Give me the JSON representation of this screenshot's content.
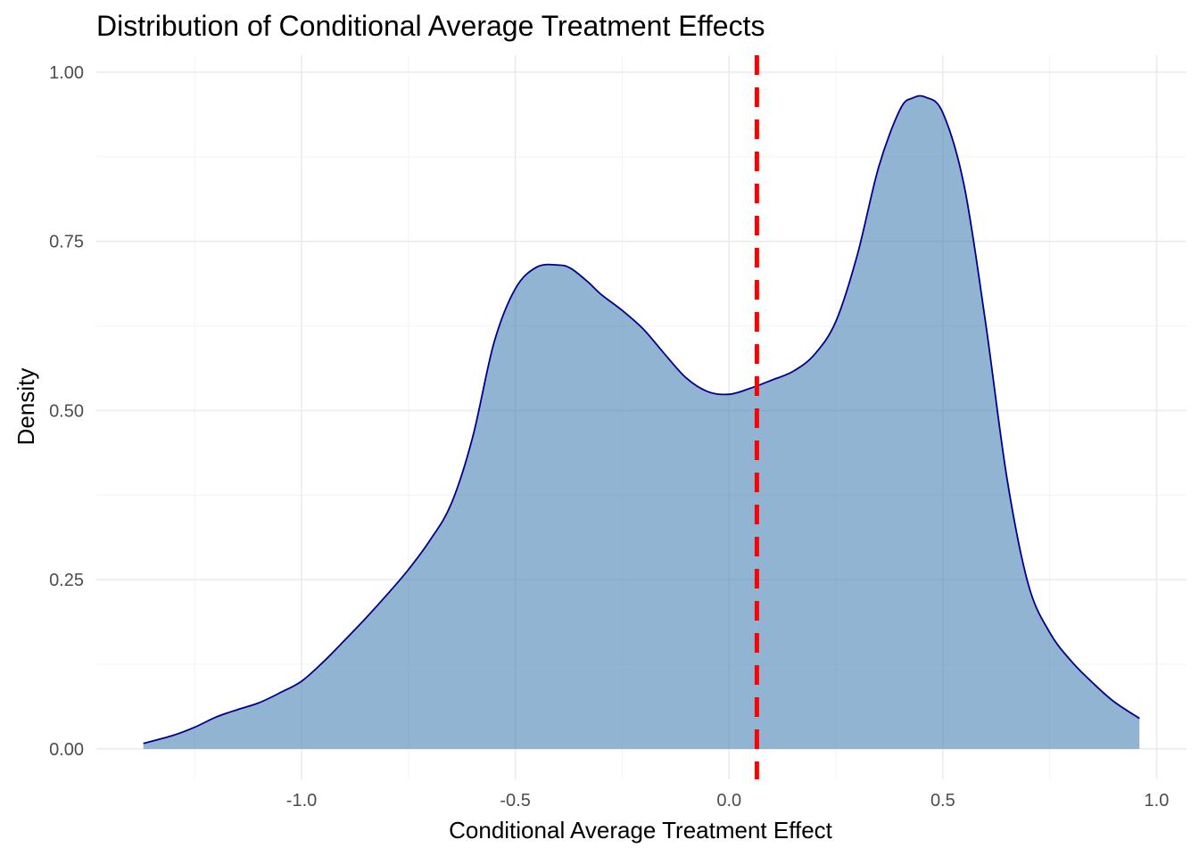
{
  "chart_data": {
    "type": "area",
    "title": "Distribution of Conditional Average Treatment Effects",
    "xlabel": "Conditional Average Treatment Effect",
    "ylabel": "Density",
    "xlim": [
      -1.48,
      1.07
    ],
    "ylim": [
      -0.045,
      1.025
    ],
    "x_ticks": [
      -1.0,
      -0.5,
      0.0,
      0.5,
      1.0
    ],
    "x_tick_labels": [
      "-1.0",
      "-0.5",
      "0.0",
      "0.5",
      "1.0"
    ],
    "x_minor_ticks": [
      -1.25,
      -0.75,
      -0.25,
      0.25,
      0.75
    ],
    "y_ticks": [
      0.0,
      0.25,
      0.5,
      0.75,
      1.0
    ],
    "y_tick_labels": [
      "0.00",
      "0.25",
      "0.50",
      "0.75",
      "1.00"
    ],
    "y_minor_ticks": [
      0.125,
      0.375,
      0.625,
      0.875
    ],
    "grid": true,
    "legend": "none",
    "series": [
      {
        "fill_color": "#4682b4",
        "fill_opacity": 0.6,
        "line_color": "#00008b",
        "x": [
          -1.37,
          -1.3,
          -1.25,
          -1.2,
          -1.15,
          -1.1,
          -1.05,
          -1.0,
          -0.95,
          -0.9,
          -0.85,
          -0.8,
          -0.75,
          -0.7,
          -0.65,
          -0.6,
          -0.55,
          -0.5,
          -0.45,
          -0.4,
          -0.37,
          -0.33,
          -0.3,
          -0.25,
          -0.2,
          -0.15,
          -0.1,
          -0.05,
          0.0,
          0.05,
          0.1,
          0.15,
          0.2,
          0.25,
          0.3,
          0.35,
          0.4,
          0.43,
          0.46,
          0.5,
          0.55,
          0.6,
          0.65,
          0.7,
          0.75,
          0.8,
          0.85,
          0.9,
          0.96
        ],
        "y": [
          0.008,
          0.02,
          0.032,
          0.047,
          0.058,
          0.068,
          0.083,
          0.1,
          0.128,
          0.16,
          0.193,
          0.228,
          0.265,
          0.308,
          0.362,
          0.46,
          0.6,
          0.68,
          0.712,
          0.715,
          0.71,
          0.69,
          0.672,
          0.648,
          0.62,
          0.583,
          0.548,
          0.528,
          0.524,
          0.533,
          0.545,
          0.558,
          0.583,
          0.632,
          0.73,
          0.86,
          0.945,
          0.962,
          0.963,
          0.94,
          0.832,
          0.63,
          0.4,
          0.243,
          0.172,
          0.13,
          0.098,
          0.07,
          0.045
        ]
      }
    ],
    "reference_line": {
      "x": 0.065,
      "color": "#ff0000",
      "style": "dashed"
    }
  }
}
